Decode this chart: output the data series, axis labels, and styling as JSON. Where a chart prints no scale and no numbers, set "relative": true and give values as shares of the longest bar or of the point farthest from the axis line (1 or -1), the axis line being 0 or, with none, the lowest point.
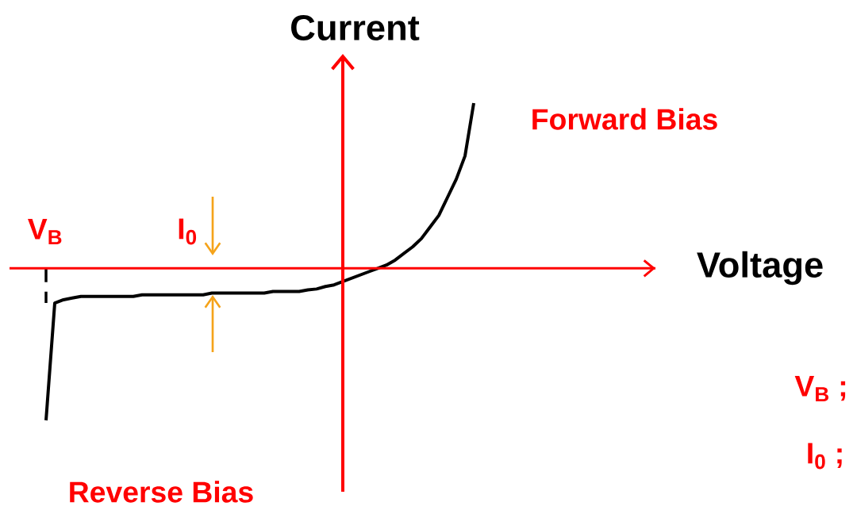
{
  "chart_data": {
    "type": "line",
    "relative": true,
    "ylabel": "Current",
    "ref_lines": [
      {
        "axis": "y",
        "value": 0,
        "color": "#ff0000"
      }
    ],
    "categories": [
      null,
      null,
      null,
      null,
      null,
      null,
      null,
      null,
      null,
      null,
      null,
      null,
      null,
      null,
      null,
      null,
      null,
      null,
      null,
      null,
      null,
      null,
      null,
      null,
      null,
      null,
      null,
      null,
      null,
      null,
      null,
      null,
      null,
      null,
      null,
      null,
      null,
      null,
      null,
      null,
      null,
      null,
      null,
      null,
      null,
      null,
      null,
      null,
      null,
      null
    ],
    "series": [
      {
        "color": "#000000",
        "values": [
          -0.92,
          -0.21,
          -0.19,
          -0.18,
          -0.17,
          -0.17,
          -0.17,
          -0.17,
          -0.17,
          -0.17,
          -0.17,
          -0.16,
          -0.16,
          -0.16,
          -0.16,
          -0.16,
          -0.16,
          -0.16,
          -0.16,
          -0.15,
          -0.15,
          -0.15,
          -0.15,
          -0.15,
          -0.15,
          -0.15,
          -0.14,
          -0.14,
          -0.14,
          -0.14,
          -0.13,
          -0.125,
          -0.11,
          -0.1,
          -0.08,
          -0.06,
          -0.04,
          -0.02,
          0,
          0.02,
          0.05,
          0.09,
          0.13,
          0.18,
          0.25,
          0.32,
          0.43,
          0.54,
          0.68,
          1
        ]
      }
    ],
    "annotations": [
      "Voltage",
      "Forward Bias",
      "Reverse Bias",
      "V$_{B}$",
      "I$_{0}$",
      "V$_{B}$ ;",
      "I$_{0}$ ;"
    ]
  }
}
